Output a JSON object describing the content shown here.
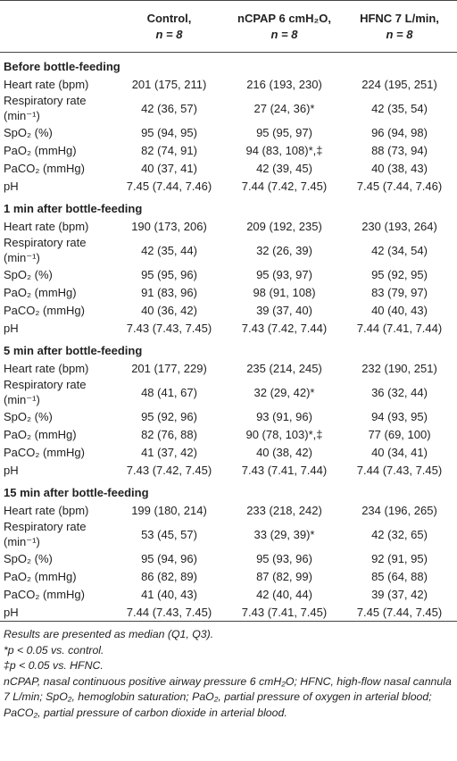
{
  "table": {
    "columns": [
      {
        "name": "Control,",
        "n": "n = 8"
      },
      {
        "name": "nCPAP 6 cmH₂O,",
        "n": "n = 8"
      },
      {
        "name": "HFNC 7 L/min,",
        "n": "n = 8"
      }
    ],
    "sections": [
      {
        "title": "Before bottle-feeding",
        "rows": [
          [
            "Heart rate (bpm)",
            "201 (175, 211)",
            "216 (193, 230)",
            "224 (195, 251)"
          ],
          [
            "Respiratory rate (min⁻¹)",
            "42 (36, 57)",
            "27 (24, 36)*",
            "42 (35, 54)"
          ],
          [
            "SpO₂ (%)",
            "95 (94, 95)",
            "95 (95, 97)",
            "96 (94, 98)"
          ],
          [
            "PaO₂ (mmHg)",
            "82 (74, 91)",
            "94 (83, 108)*,‡",
            "88 (73, 94)"
          ],
          [
            "PaCO₂ (mmHg)",
            "40 (37, 41)",
            "42 (39, 45)",
            "40 (38, 43)"
          ],
          [
            "pH",
            "7.45 (7.44, 7.46)",
            "7.44 (7.42, 7.45)",
            "7.45 (7.44, 7.46)"
          ]
        ]
      },
      {
        "title": "1 min after bottle-feeding",
        "rows": [
          [
            "Heart rate (bpm)",
            "190 (173, 206)",
            "209 (192, 235)",
            "230 (193, 264)"
          ],
          [
            "Respiratory rate (min⁻¹)",
            "42 (35, 44)",
            "32 (26, 39)",
            "42 (34, 54)"
          ],
          [
            "SpO₂ (%)",
            "95 (95, 96)",
            "95 (93, 97)",
            "95 (92, 95)"
          ],
          [
            "PaO₂ (mmHg)",
            "91 (83, 96)",
            "98 (91, 108)",
            "83 (79, 97)"
          ],
          [
            "PaCO₂ (mmHg)",
            "40 (36, 42)",
            "39 (37, 40)",
            "40 (40, 43)"
          ],
          [
            "pH",
            "7.43 (7.43, 7.45)",
            "7.43 (7.42, 7.44)",
            "7.44 (7.41, 7.44)"
          ]
        ]
      },
      {
        "title": "5 min after bottle-feeding",
        "rows": [
          [
            "Heart rate (bpm)",
            "201 (177, 229)",
            "235 (214, 245)",
            "232 (190, 251)"
          ],
          [
            "Respiratory rate (min⁻¹)",
            "48 (41, 67)",
            "32 (29, 42)*",
            "36 (32, 44)"
          ],
          [
            "SpO₂ (%)",
            "95 (92, 96)",
            "93 (91, 96)",
            "94 (93, 95)"
          ],
          [
            "PaO₂ (mmHg)",
            "82 (76, 88)",
            "90 (78, 103)*,‡",
            "77 (69, 100)"
          ],
          [
            "PaCO₂ (mmHg)",
            "41 (37, 42)",
            "40 (38, 42)",
            "40 (34, 41)"
          ],
          [
            "pH",
            "7.43 (7.42, 7.45)",
            "7.43 (7.41, 7.44)",
            "7.44 (7.43, 7.45)"
          ]
        ]
      },
      {
        "title": "15 min after bottle-feeding",
        "rows": [
          [
            "Heart rate (bpm)",
            "199 (180, 214)",
            "233 (218, 242)",
            "234 (196, 265)"
          ],
          [
            "Respiratory rate (min⁻¹)",
            "53 (45, 57)",
            "33 (29, 39)*",
            "42 (32, 65)"
          ],
          [
            "SpO₂ (%)",
            "95 (94, 96)",
            "95 (93, 96)",
            "92 (91, 95)"
          ],
          [
            "PaO₂ (mmHg)",
            "86 (82, 89)",
            "87 (82, 99)",
            "85 (64, 88)"
          ],
          [
            "PaCO₂ (mmHg)",
            "41 (40, 43)",
            "42 (40, 44)",
            "39 (37, 42)"
          ],
          [
            "pH",
            "7.44 (7.43, 7.45)",
            "7.43 (7.41, 7.45)",
            "7.45 (7.44, 7.45)"
          ]
        ]
      }
    ],
    "notes": [
      "Results are presented as median (Q1, Q3).",
      "*p < 0.05 vs. control.",
      "‡p < 0.05 vs. HFNC.",
      "nCPAP, nasal continuous positive airway pressure 6 cmH₂O; HFNC, high-flow nasal cannula 7 L/min; SpO₂, hemoglobin saturation; PaO₂, partial pressure of oxygen in arterial blood; PaCO₂, partial pressure of carbon dioxide in arterial blood."
    ]
  }
}
